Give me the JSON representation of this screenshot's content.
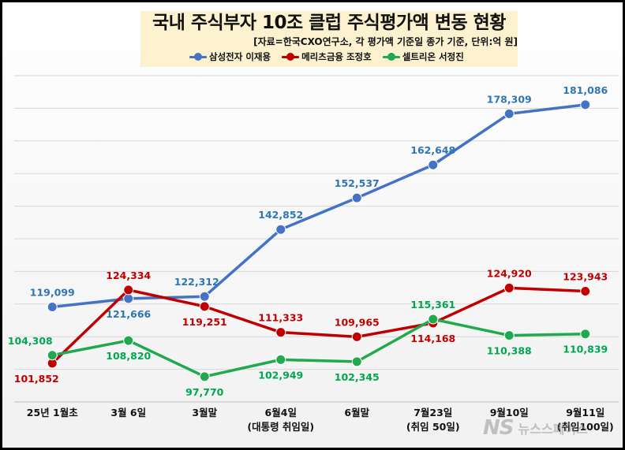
{
  "chart_data": {
    "type": "line",
    "title": "국내 주식부자 10조 클럽 주식평가액 변동 현황",
    "subtitle": "[자료=한국CXO연구소, 각 평가액 기준일 종가 기준, 단위:억 원]",
    "categories": [
      "25년 1월초",
      "3월 6일",
      "3월말",
      "6월4일",
      "6월말",
      "7월23일",
      "9월10일",
      "9월11일"
    ],
    "category_notes": [
      "",
      "",
      "",
      "(대통령 취임일)",
      "",
      "(취임 50일)",
      "",
      "(취임100일)"
    ],
    "series": [
      {
        "name": "삼성전자 이재용",
        "color": "#4472C4",
        "values": [
          119099,
          121666,
          122312,
          142852,
          152537,
          162648,
          178309,
          181086
        ],
        "labels": [
          "119,099",
          "121,666",
          "122,312",
          "142,852",
          "152,537",
          "162,648",
          "178,309",
          "181,086"
        ]
      },
      {
        "name": "메리츠금융 조정호",
        "color": "#C00000",
        "values": [
          101852,
          124334,
          119251,
          111333,
          109965,
          114168,
          124920,
          123943
        ],
        "labels": [
          "101,852",
          "124,334",
          "119,251",
          "111,333",
          "109,965",
          "114,168",
          "124,920",
          "123,943"
        ]
      },
      {
        "name": "셀트리온 서정진",
        "color": "#22A94F",
        "values": [
          104308,
          108820,
          97770,
          102949,
          102345,
          115361,
          110388,
          110839
        ],
        "labels": [
          "104,308",
          "108,820",
          "97,770",
          "102,949",
          "102,345",
          "115,361",
          "110,388",
          "110,839"
        ]
      }
    ],
    "ylim": [
      90000,
      190000
    ],
    "grid": true,
    "legend": "top-center",
    "label_colors": {
      "삼성전자 이재용": "#2E75B6",
      "메리츠금융 조정호": "#C00000",
      "셀트리온 서정진": "#00A650"
    }
  },
  "watermark": {
    "logo": "NS",
    "text": "뉴스스페이스"
  }
}
